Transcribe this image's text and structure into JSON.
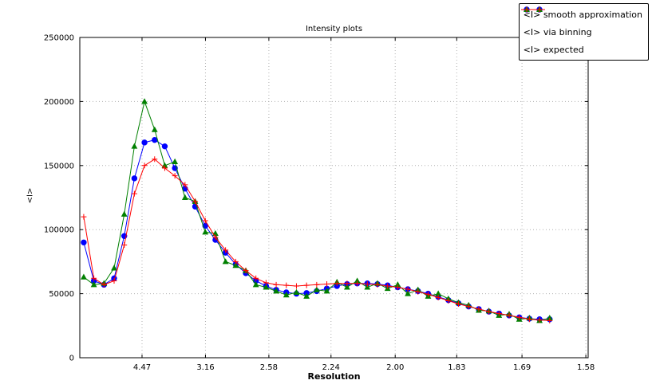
{
  "figure": {
    "background": "#ffffff",
    "frame_color": "#000000"
  },
  "chart_data": {
    "type": "line",
    "title": "Intensity plots",
    "xlabel": "Resolution",
    "ylabel": "<I>",
    "grid": {
      "show": true,
      "style": "dotted",
      "color": "#b0b0b0"
    },
    "legend_position": "top-right",
    "x_axis": {
      "note": "resolution axis, linear in 1/d^2",
      "min": 0.0009,
      "max": 0.4024,
      "ticks": [
        {
          "label": "4.47",
          "pos": 0.05005
        },
        {
          "label": "3.16",
          "pos": 0.10014
        },
        {
          "label": "2.58",
          "pos": 0.15022
        },
        {
          "label": "2.24",
          "pos": 0.1993
        },
        {
          "label": "2.00",
          "pos": 0.25
        },
        {
          "label": "1.83",
          "pos": 0.29861
        },
        {
          "label": "1.69",
          "pos": 0.35014
        },
        {
          "label": "1.58",
          "pos": 0.40057
        }
      ]
    },
    "y_axis": {
      "min": 0,
      "max": 250000,
      "ticks": [
        {
          "label": "0",
          "pos": 0
        },
        {
          "label": "50000",
          "pos": 50000
        },
        {
          "label": "100000",
          "pos": 100000
        },
        {
          "label": "150000",
          "pos": 150000
        },
        {
          "label": "200000",
          "pos": 200000
        },
        {
          "label": "250000",
          "pos": 250000
        }
      ]
    },
    "x": [
      0.004,
      0.012,
      0.02,
      0.028,
      0.036,
      0.044,
      0.052,
      0.06,
      0.068,
      0.076,
      0.084,
      0.092,
      0.1,
      0.108,
      0.116,
      0.124,
      0.132,
      0.14,
      0.148,
      0.156,
      0.164,
      0.172,
      0.18,
      0.188,
      0.196,
      0.204,
      0.212,
      0.22,
      0.228,
      0.236,
      0.244,
      0.252,
      0.26,
      0.268,
      0.276,
      0.284,
      0.292,
      0.3,
      0.308,
      0.316,
      0.324,
      0.332,
      0.34,
      0.348,
      0.356,
      0.364,
      0.372
    ],
    "series": [
      {
        "name": "<I> smooth approximation",
        "color": "#0000ff",
        "marker": "circle",
        "values": [
          90000,
          60000,
          57000,
          62000,
          95000,
          140000,
          168000,
          170000,
          165000,
          148000,
          132000,
          118000,
          103000,
          92000,
          82000,
          73000,
          66000,
          60000,
          56000,
          53000,
          51000,
          50000,
          50500,
          52000,
          54000,
          56000,
          57500,
          58000,
          58000,
          57500,
          56500,
          55000,
          53500,
          52000,
          50000,
          47500,
          45000,
          42500,
          40000,
          38000,
          36000,
          34500,
          33000,
          31500,
          30500,
          30000,
          30000
        ]
      },
      {
        "name": "<I> via binning",
        "color": "#008000",
        "marker": "triangle",
        "values": [
          63000,
          57000,
          58000,
          70000,
          112000,
          165000,
          200000,
          178000,
          150000,
          153000,
          125000,
          122000,
          98000,
          97000,
          75000,
          72000,
          68000,
          57000,
          55000,
          52000,
          49000,
          51000,
          48000,
          53000,
          52000,
          59000,
          55000,
          60000,
          55000,
          58000,
          54000,
          57000,
          50000,
          53000,
          48000,
          50000,
          46000,
          43000,
          41000,
          37000,
          36500,
          33000,
          34000,
          30000,
          31000,
          29000,
          31000
        ]
      },
      {
        "name": "<I> expected",
        "color": "#ff0000",
        "marker": "plus",
        "values": [
          110000,
          62000,
          57000,
          60000,
          88000,
          128000,
          150000,
          155000,
          148000,
          142000,
          135000,
          122000,
          107000,
          94000,
          84000,
          75000,
          68000,
          62000,
          58500,
          57000,
          56500,
          56000,
          56500,
          57000,
          57500,
          58000,
          58000,
          58000,
          57500,
          57000,
          56000,
          55000,
          53500,
          51500,
          49500,
          47000,
          44500,
          42000,
          40000,
          38000,
          36000,
          34500,
          33000,
          31500,
          30000,
          29500,
          29000
        ]
      }
    ]
  }
}
